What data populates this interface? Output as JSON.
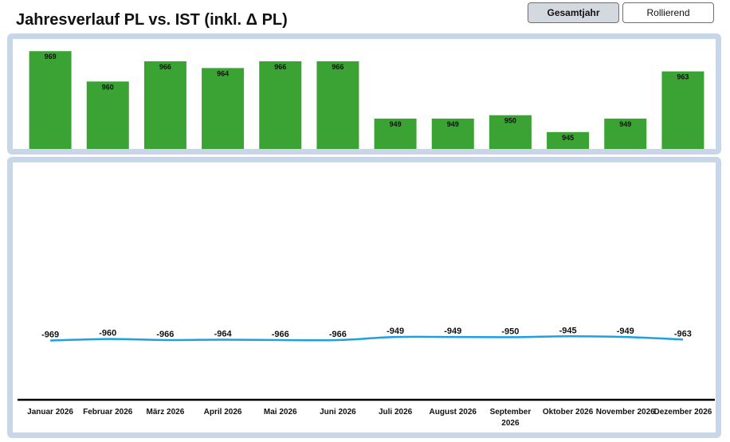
{
  "header": {
    "title": "Jahresverlauf PL vs. IST (inkl. Δ PL)",
    "buttons": {
      "gesamtjahr": "Gesamtjahr",
      "rollierend": "Rollierend"
    }
  },
  "colors": {
    "bar": "#3ba334",
    "line": "#1ba1e2",
    "frame": "#c8d6ea",
    "axis": "#000000"
  },
  "chart_data": [
    {
      "type": "bar",
      "categories": [
        "Januar 2026",
        "Februar 2026",
        "März 2026",
        "April 2026",
        "Mai 2026",
        "Juni 2026",
        "Juli 2026",
        "August 2026",
        "September 2026",
        "Oktober 2026",
        "November 2026",
        "Dezember 2026"
      ],
      "values": [
        969,
        960,
        966,
        964,
        966,
        966,
        949,
        949,
        950,
        945,
        949,
        963
      ],
      "data_labels": true,
      "ylim": [
        940,
        970
      ]
    },
    {
      "type": "line",
      "categories": [
        "Januar 2026",
        "Februar 2026",
        "März 2026",
        "April 2026",
        "Mai 2026",
        "Juni 2026",
        "Juli 2026",
        "August 2026",
        "September 2026",
        "Oktober 2026",
        "November 2026",
        "Dezember 2026"
      ],
      "values": [
        -969,
        -960,
        -966,
        -964,
        -966,
        -966,
        -949,
        -949,
        -950,
        -945,
        -949,
        -963
      ],
      "data_labels": true,
      "ylim": [
        -1300,
        0
      ]
    }
  ]
}
